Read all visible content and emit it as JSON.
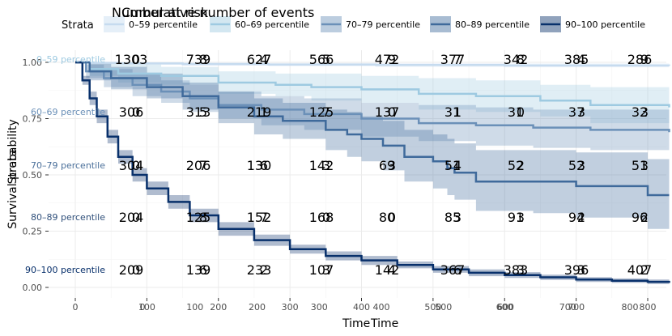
{
  "chart_data": {
    "type": "line",
    "title": "",
    "overlay_titles": [
      "Number at risk",
      "Cumulative number of events"
    ],
    "xlabel": "Time",
    "ylabel": "Survival probability",
    "overlay_ylabel": "Strata",
    "legend_title": "Strata",
    "legend_position": "top",
    "xlim": [
      0,
      830
    ],
    "ylim": [
      0,
      1
    ],
    "y_ticks": [
      "0.00",
      "0.25",
      "0.50",
      "0.75",
      "1.00"
    ],
    "x_ticks_main": [
      "0",
      "100",
      "200",
      "300",
      "400",
      "500",
      "600",
      "700",
      "800"
    ],
    "x_ticks_table": [
      "0",
      "100",
      "200",
      "300",
      "400",
      "500",
      "600",
      "700",
      "800"
    ],
    "series": [
      {
        "name": "0–59 percentile",
        "color": "#c6dbef",
        "x": [
          0,
          20,
          60,
          150,
          270,
          420,
          600,
          830
        ],
        "y": [
          1.0,
          0.998,
          0.995,
          0.992,
          0.99,
          0.988,
          0.986,
          0.985
        ],
        "ci_lower": [
          1.0,
          0.994,
          0.99,
          0.986,
          0.983,
          0.98,
          0.978,
          0.976
        ],
        "ci_upper": [
          1.0,
          1.0,
          1.0,
          1.0,
          0.997,
          0.996,
          0.995,
          0.994
        ],
        "at_risk": [
          1303,
          739,
          627,
          566,
          472,
          377,
          342,
          385,
          286
        ],
        "events": [
          0,
          8,
          4,
          5,
          9,
          7,
          8,
          4,
          9
        ]
      },
      {
        "name": "60–69 percentile",
        "color": "#9ecae1",
        "x": [
          0,
          20,
          60,
          120,
          200,
          280,
          330,
          400,
          480,
          560,
          650,
          720,
          830
        ],
        "y": [
          1.0,
          0.97,
          0.95,
          0.94,
          0.91,
          0.9,
          0.89,
          0.88,
          0.86,
          0.85,
          0.83,
          0.81,
          0.8
        ],
        "ci_lower": [
          1.0,
          0.94,
          0.91,
          0.9,
          0.86,
          0.85,
          0.83,
          0.82,
          0.79,
          0.78,
          0.76,
          0.73,
          0.72
        ],
        "ci_upper": [
          1.0,
          1.0,
          0.99,
          0.98,
          0.96,
          0.95,
          0.95,
          0.94,
          0.93,
          0.92,
          0.9,
          0.89,
          0.88
        ],
        "at_risk": [
          306,
          313,
          219,
          125,
          137,
          31,
          31,
          37,
          32
        ],
        "events": [
          0,
          5,
          1,
          7,
          0,
          1,
          0,
          3,
          3
        ]
      },
      {
        "name": "70–79 percentile",
        "color": "#6b90b8",
        "x": [
          0,
          15,
          40,
          80,
          120,
          160,
          200,
          260,
          320,
          400,
          480,
          560,
          640,
          720,
          830
        ],
        "y": [
          1.0,
          0.96,
          0.93,
          0.9,
          0.87,
          0.84,
          0.81,
          0.79,
          0.77,
          0.75,
          0.73,
          0.72,
          0.71,
          0.7,
          0.69
        ],
        "ci_lower": [
          1.0,
          0.93,
          0.89,
          0.85,
          0.82,
          0.78,
          0.75,
          0.72,
          0.7,
          0.67,
          0.65,
          0.63,
          0.62,
          0.61,
          0.6
        ],
        "ci_upper": [
          1.0,
          0.99,
          0.97,
          0.95,
          0.92,
          0.9,
          0.87,
          0.85,
          0.84,
          0.82,
          0.81,
          0.8,
          0.79,
          0.79,
          0.78
        ],
        "at_risk": [
          304,
          206,
          130,
          142,
          69,
          51,
          52,
          52,
          51
        ],
        "events": [
          0,
          7,
          6,
          3,
          3,
          4,
          2,
          3,
          3
        ]
      },
      {
        "name": "80–89 percentile",
        "color": "#3f6a9b",
        "x": [
          0,
          20,
          50,
          100,
          150,
          200,
          250,
          290,
          350,
          380,
          400,
          430,
          460,
          500,
          520,
          530,
          560,
          640,
          700,
          790,
          800,
          830
        ],
        "y": [
          1.0,
          0.96,
          0.93,
          0.89,
          0.85,
          0.8,
          0.76,
          0.74,
          0.7,
          0.68,
          0.66,
          0.63,
          0.58,
          0.56,
          0.53,
          0.51,
          0.47,
          0.47,
          0.45,
          0.45,
          0.41,
          0.41
        ],
        "ci_lower": [
          1.0,
          0.92,
          0.88,
          0.84,
          0.79,
          0.73,
          0.68,
          0.66,
          0.61,
          0.58,
          0.56,
          0.52,
          0.47,
          0.44,
          0.41,
          0.39,
          0.34,
          0.33,
          0.31,
          0.3,
          0.26,
          0.26
        ],
        "ci_upper": [
          1.0,
          1.0,
          0.98,
          0.95,
          0.91,
          0.87,
          0.84,
          0.82,
          0.79,
          0.78,
          0.76,
          0.74,
          0.7,
          0.68,
          0.66,
          0.64,
          0.61,
          0.61,
          0.6,
          0.6,
          0.57,
          0.57
        ],
        "at_risk": [
          204,
          125,
          152,
          168,
          80,
          85,
          91,
          94,
          96
        ],
        "events": [
          0,
          8,
          7,
          0,
          0,
          3,
          3,
          2,
          2
        ]
      },
      {
        "name": "90–100 percentile",
        "color": "#08306b",
        "x": [
          0,
          10,
          20,
          30,
          45,
          60,
          80,
          100,
          130,
          160,
          200,
          250,
          300,
          350,
          400,
          450,
          500,
          550,
          600,
          650,
          700,
          750,
          800,
          830
        ],
        "y": [
          1.0,
          0.92,
          0.84,
          0.76,
          0.67,
          0.58,
          0.5,
          0.44,
          0.38,
          0.32,
          0.26,
          0.21,
          0.17,
          0.14,
          0.12,
          0.1,
          0.08,
          0.065,
          0.055,
          0.045,
          0.035,
          0.03,
          0.025,
          0.02
        ],
        "ci_lower": [
          1.0,
          0.9,
          0.81,
          0.73,
          0.64,
          0.55,
          0.47,
          0.41,
          0.35,
          0.29,
          0.23,
          0.185,
          0.15,
          0.12,
          0.1,
          0.085,
          0.065,
          0.05,
          0.042,
          0.033,
          0.024,
          0.02,
          0.015,
          0.01
        ],
        "ci_upper": [
          1.0,
          0.94,
          0.87,
          0.79,
          0.7,
          0.61,
          0.53,
          0.47,
          0.41,
          0.35,
          0.29,
          0.235,
          0.19,
          0.16,
          0.14,
          0.115,
          0.095,
          0.08,
          0.068,
          0.057,
          0.046,
          0.04,
          0.035,
          0.03
        ],
        "at_risk": [
          209,
          139,
          233,
          107,
          142,
          367,
          383,
          396,
          407
        ],
        "events": [
          0,
          6,
          2,
          3,
          4,
          6,
          3,
          3,
          2
        ]
      }
    ]
  }
}
